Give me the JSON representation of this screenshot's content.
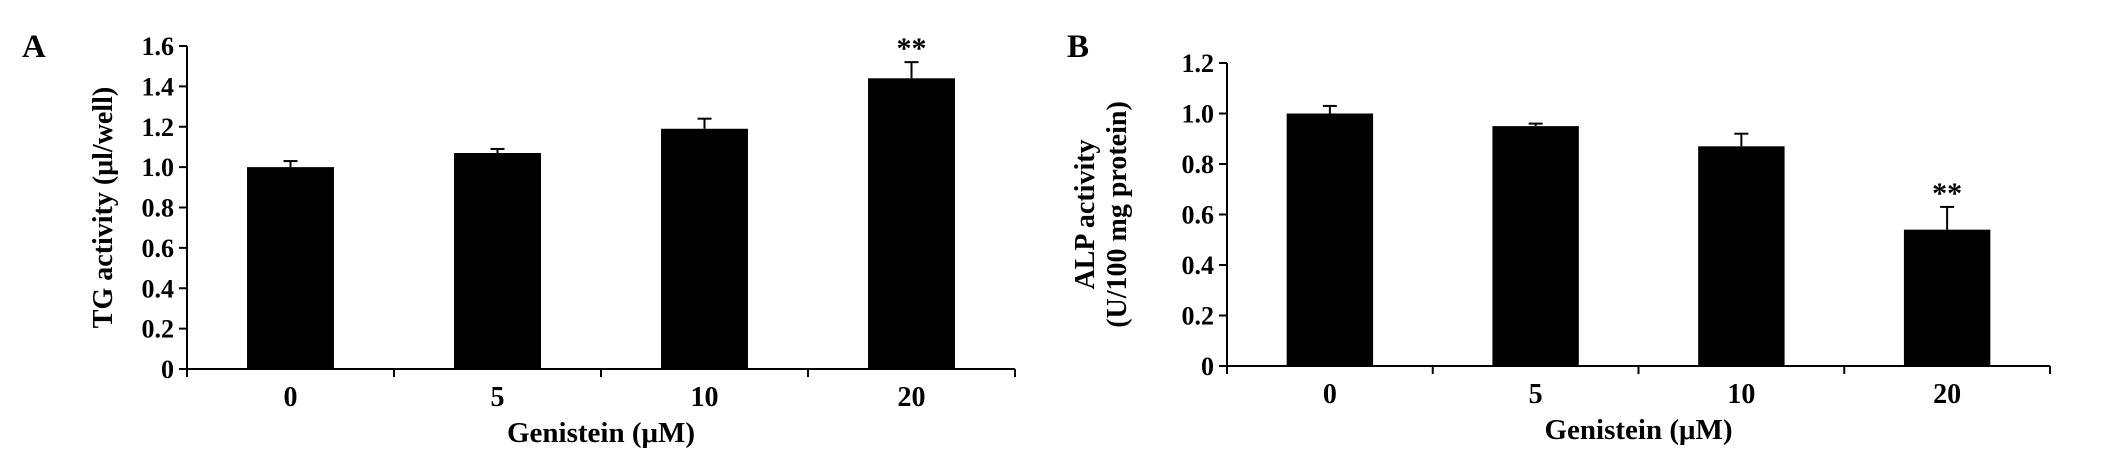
{
  "chart_data": [
    {
      "panel_letter": "A",
      "type": "bar",
      "xlabel": "Genistein (μM)",
      "ylabel": [
        "TG activity (μl/well)"
      ],
      "categories": [
        "0",
        "5",
        "10",
        "20"
      ],
      "values": [
        1.0,
        1.07,
        1.19,
        1.44
      ],
      "errors": [
        0.03,
        0.02,
        0.05,
        0.08
      ],
      "annotations": [
        "",
        "",
        "",
        "**"
      ],
      "yticks": [
        "0",
        "0.2",
        "0.4",
        "0.6",
        "0.8",
        "1.0",
        "1.2",
        "1.4",
        "1.6"
      ],
      "ylim": [
        0,
        1.6
      ],
      "bar_color": "#000000",
      "grid": false
    },
    {
      "panel_letter": "B",
      "type": "bar",
      "xlabel": "Genistein (μM)",
      "ylabel": [
        "ALP activity",
        "(U/100 mg protein)"
      ],
      "categories": [
        "0",
        "5",
        "10",
        "20"
      ],
      "values": [
        1.0,
        0.95,
        0.87,
        0.54
      ],
      "errors": [
        0.03,
        0.01,
        0.05,
        0.09
      ],
      "annotations": [
        "",
        "",
        "",
        "**"
      ],
      "yticks": [
        "0",
        "0.2",
        "0.4",
        "0.6",
        "0.8",
        "1.0",
        "1.2"
      ],
      "ylim": [
        0,
        1.2
      ],
      "bar_color": "#000000",
      "grid": false
    }
  ]
}
